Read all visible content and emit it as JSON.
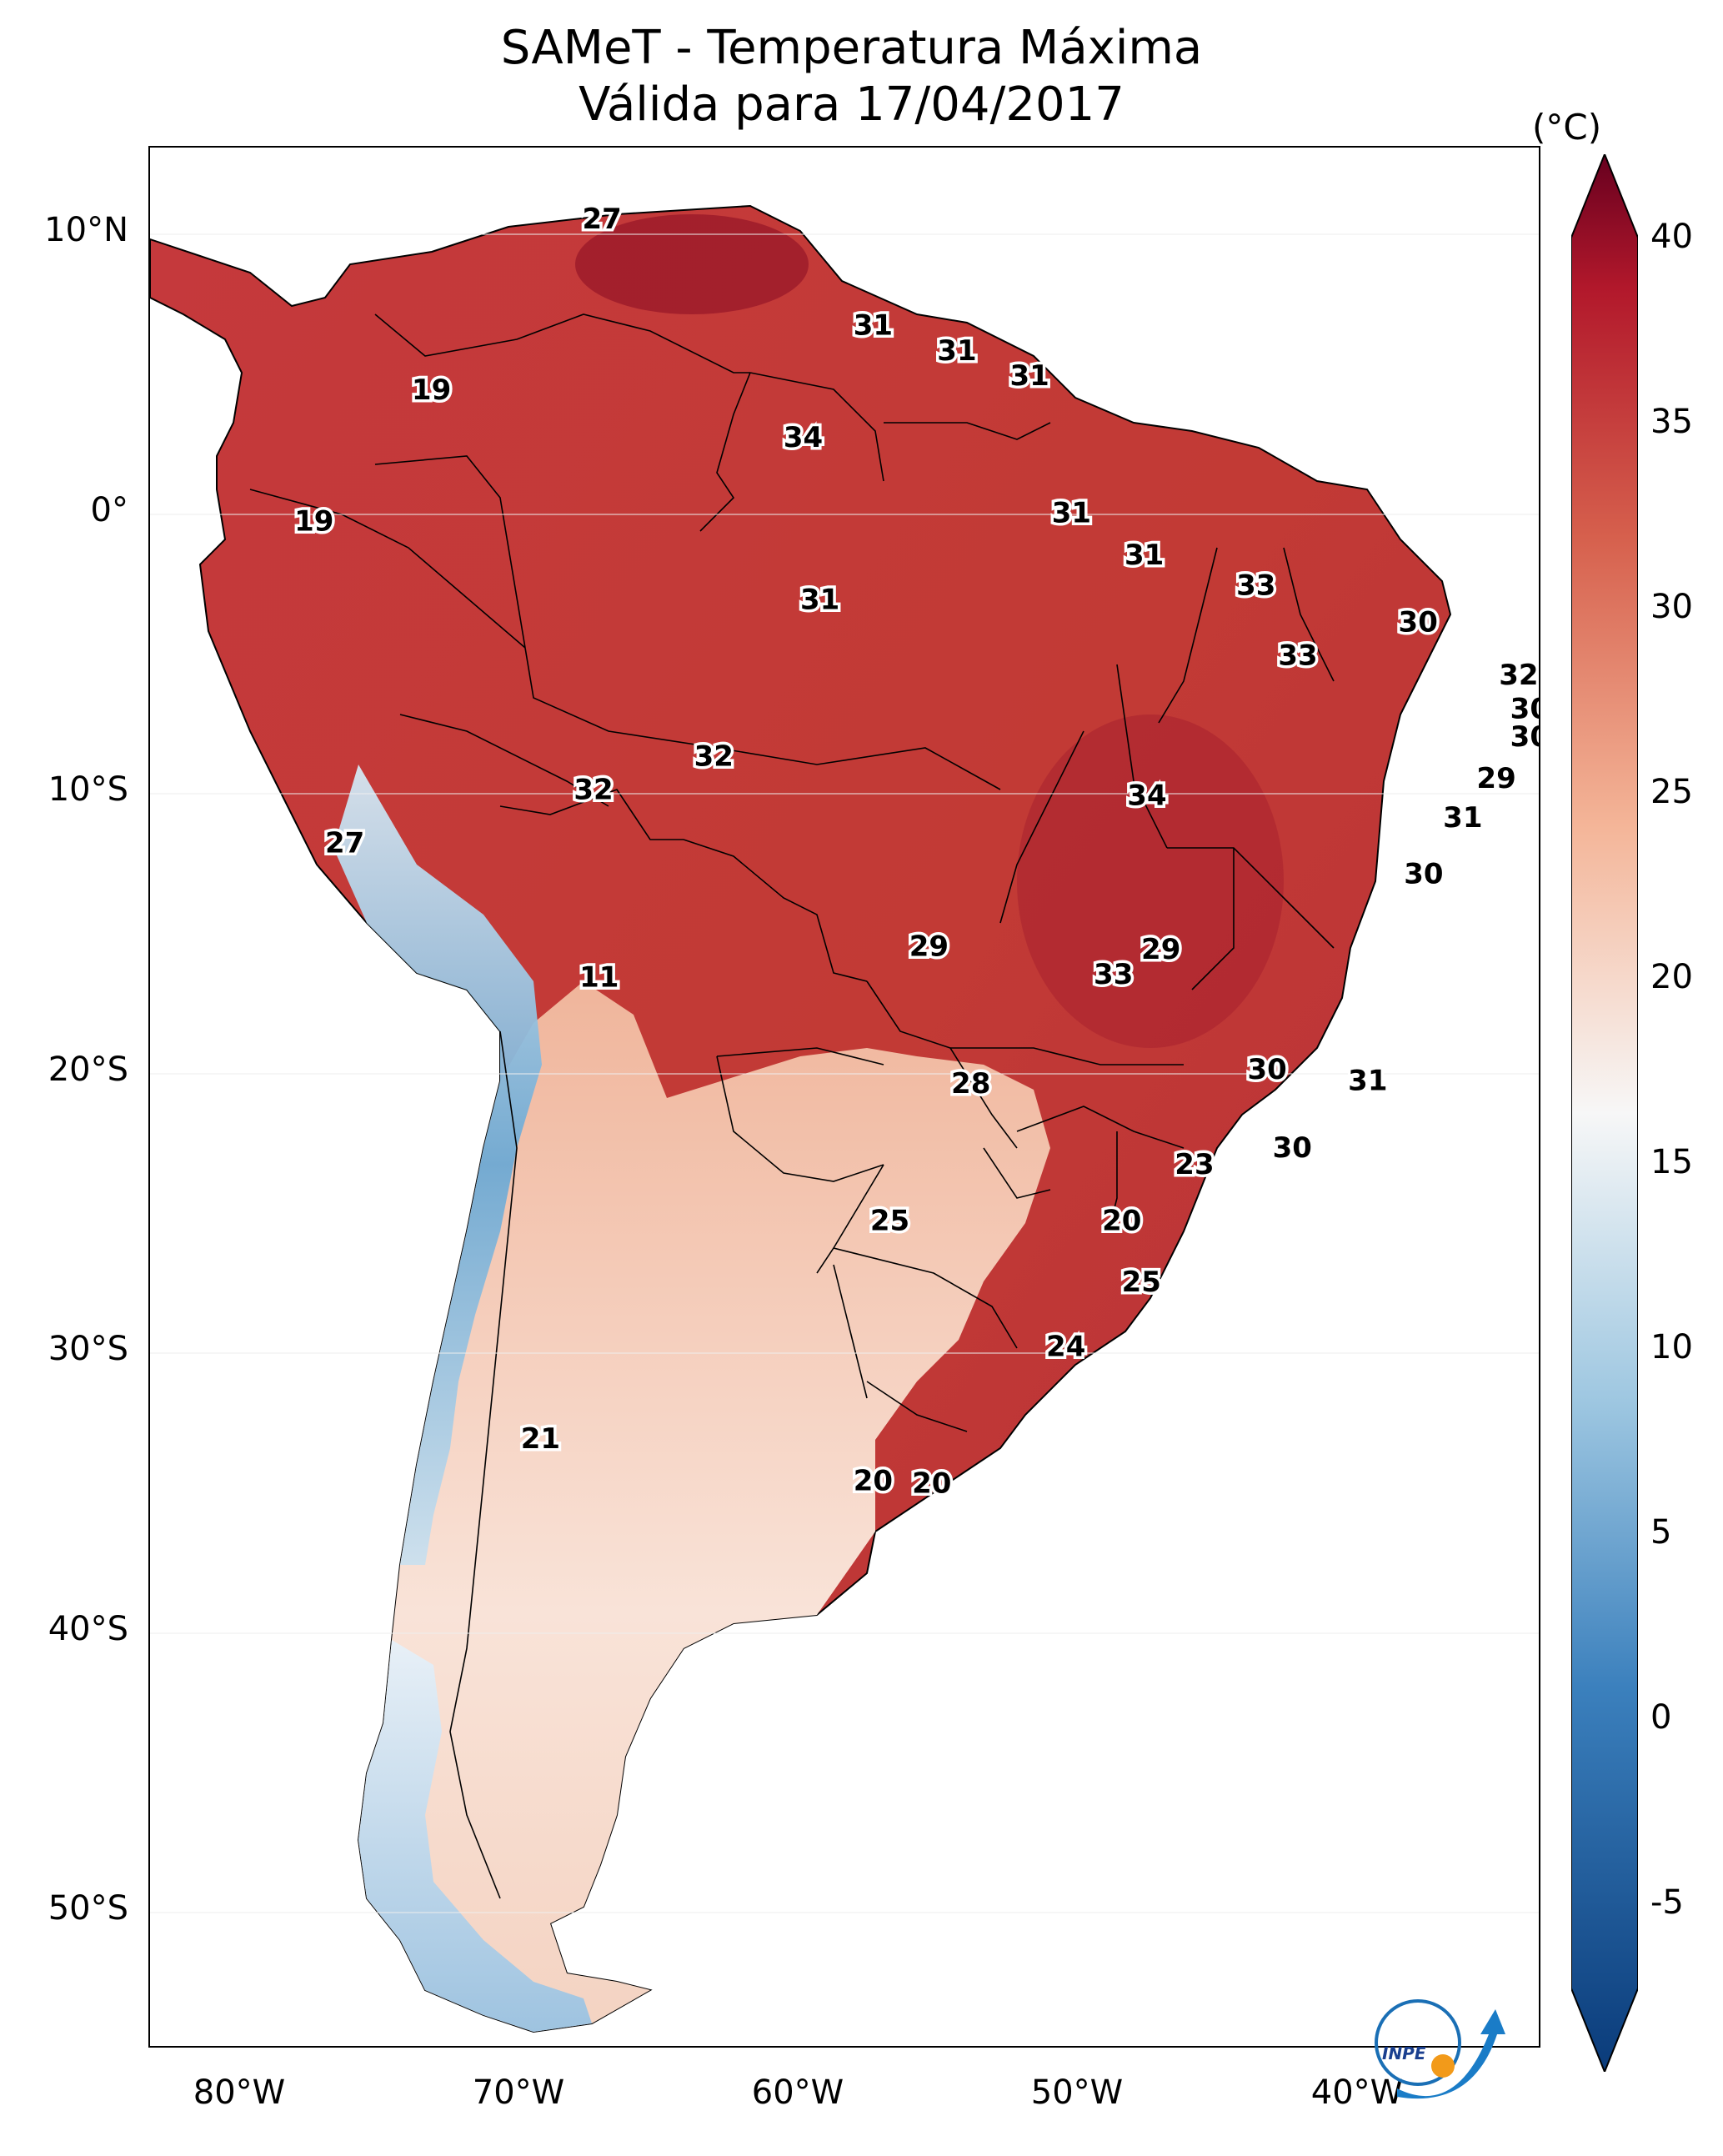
{
  "title_line1": "SAMeT - Temperatura Máxima",
  "title_line2": "Válida para 17/04/2017",
  "units": "(°C)",
  "lat_ticks": [
    "10°N",
    "0°",
    "10°S",
    "20°S",
    "30°S",
    "40°S",
    "50°S"
  ],
  "lon_ticks": [
    "80°W",
    "70°W",
    "60°W",
    "50°W",
    "40°W"
  ],
  "colorbar": {
    "ticks": [
      "40",
      "35",
      "30",
      "25",
      "20",
      "15",
      "10",
      "5",
      "0",
      "-5"
    ],
    "min": -5,
    "max": 40,
    "colors": {
      "low": "#0a3b7a",
      "mid_low": "#6aa6d0",
      "neutral": "#f7f7f7",
      "mid_high": "#f2a07e",
      "high": "#b2182b",
      "top": "#67001f"
    }
  },
  "map_labels": [
    {
      "text": "27",
      "lon": -67.5,
      "lat": 10.5
    },
    {
      "text": "31",
      "lon": -57.8,
      "lat": 6.7
    },
    {
      "text": "31",
      "lon": -54.8,
      "lat": 5.8
    },
    {
      "text": "31",
      "lon": -52.2,
      "lat": 4.9
    },
    {
      "text": "19",
      "lon": -73.6,
      "lat": 4.4
    },
    {
      "text": "34",
      "lon": -60.3,
      "lat": 2.7
    },
    {
      "text": "19",
      "lon": -77.8,
      "lat": -0.3
    },
    {
      "text": "31",
      "lon": -50.7,
      "lat": 0.0
    },
    {
      "text": "31",
      "lon": -48.1,
      "lat": -1.5
    },
    {
      "text": "31",
      "lon": -59.7,
      "lat": -3.1
    },
    {
      "text": "33",
      "lon": -44.1,
      "lat": -2.6
    },
    {
      "text": "30",
      "lon": -38.3,
      "lat": -3.9
    },
    {
      "text": "33",
      "lon": -42.6,
      "lat": -5.1
    },
    {
      "text": "32",
      "lon": -34.7,
      "lat": -5.8
    },
    {
      "text": "30",
      "lon": -34.3,
      "lat": -7.0
    },
    {
      "text": "30",
      "lon": -34.3,
      "lat": -8.0
    },
    {
      "text": "29",
      "lon": -35.5,
      "lat": -9.5
    },
    {
      "text": "32",
      "lon": -63.5,
      "lat": -8.7
    },
    {
      "text": "32",
      "lon": -67.8,
      "lat": -9.9
    },
    {
      "text": "34",
      "lon": -48.0,
      "lat": -10.1
    },
    {
      "text": "31",
      "lon": -36.7,
      "lat": -10.9
    },
    {
      "text": "27",
      "lon": -76.7,
      "lat": -11.8
    },
    {
      "text": "30",
      "lon": -38.1,
      "lat": -12.9
    },
    {
      "text": "29",
      "lon": -55.8,
      "lat": -15.5
    },
    {
      "text": "29",
      "lon": -47.5,
      "lat": -15.6
    },
    {
      "text": "33",
      "lon": -49.2,
      "lat": -16.5
    },
    {
      "text": "11",
      "lon": -67.6,
      "lat": -16.6
    },
    {
      "text": "30",
      "lon": -43.7,
      "lat": -19.9
    },
    {
      "text": "31",
      "lon": -40.1,
      "lat": -20.3
    },
    {
      "text": "28",
      "lon": -54.3,
      "lat": -20.4
    },
    {
      "text": "30",
      "lon": -42.8,
      "lat": -22.7
    },
    {
      "text": "23",
      "lon": -46.3,
      "lat": -23.3
    },
    {
      "text": "25",
      "lon": -57.2,
      "lat": -25.3
    },
    {
      "text": "20",
      "lon": -48.9,
      "lat": -25.3
    },
    {
      "text": "25",
      "lon": -48.2,
      "lat": -27.5
    },
    {
      "text": "24",
      "lon": -50.9,
      "lat": -29.8
    },
    {
      "text": "21",
      "lon": -69.7,
      "lat": -33.1
    },
    {
      "text": "20",
      "lon": -57.8,
      "lat": -34.6
    },
    {
      "text": "20",
      "lon": -55.7,
      "lat": -34.7
    }
  ],
  "logo_text": "INPE"
}
